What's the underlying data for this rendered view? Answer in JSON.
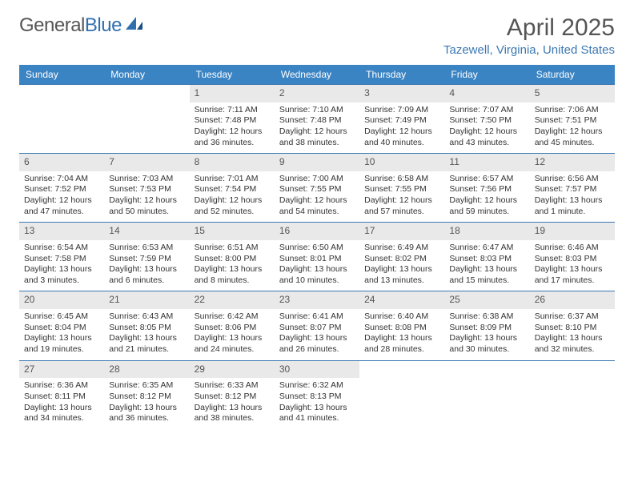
{
  "brand": {
    "part1": "General",
    "part2": "Blue"
  },
  "title": "April 2025",
  "location": "Tazewell, Virginia, United States",
  "day_headers": [
    "Sunday",
    "Monday",
    "Tuesday",
    "Wednesday",
    "Thursday",
    "Friday",
    "Saturday"
  ],
  "colors": {
    "header_bg": "#3b84c4",
    "header_text": "#ffffff",
    "accent": "#3b78b3",
    "daynum_bg": "#e9e9e9",
    "body_text": "#333333",
    "muted_text": "#555555",
    "page_bg": "#ffffff"
  },
  "weeks": [
    [
      null,
      null,
      {
        "n": "1",
        "sr": "Sunrise: 7:11 AM",
        "ss": "Sunset: 7:48 PM",
        "dl": "Daylight: 12 hours and 36 minutes."
      },
      {
        "n": "2",
        "sr": "Sunrise: 7:10 AM",
        "ss": "Sunset: 7:48 PM",
        "dl": "Daylight: 12 hours and 38 minutes."
      },
      {
        "n": "3",
        "sr": "Sunrise: 7:09 AM",
        "ss": "Sunset: 7:49 PM",
        "dl": "Daylight: 12 hours and 40 minutes."
      },
      {
        "n": "4",
        "sr": "Sunrise: 7:07 AM",
        "ss": "Sunset: 7:50 PM",
        "dl": "Daylight: 12 hours and 43 minutes."
      },
      {
        "n": "5",
        "sr": "Sunrise: 7:06 AM",
        "ss": "Sunset: 7:51 PM",
        "dl": "Daylight: 12 hours and 45 minutes."
      }
    ],
    [
      {
        "n": "6",
        "sr": "Sunrise: 7:04 AM",
        "ss": "Sunset: 7:52 PM",
        "dl": "Daylight: 12 hours and 47 minutes."
      },
      {
        "n": "7",
        "sr": "Sunrise: 7:03 AM",
        "ss": "Sunset: 7:53 PM",
        "dl": "Daylight: 12 hours and 50 minutes."
      },
      {
        "n": "8",
        "sr": "Sunrise: 7:01 AM",
        "ss": "Sunset: 7:54 PM",
        "dl": "Daylight: 12 hours and 52 minutes."
      },
      {
        "n": "9",
        "sr": "Sunrise: 7:00 AM",
        "ss": "Sunset: 7:55 PM",
        "dl": "Daylight: 12 hours and 54 minutes."
      },
      {
        "n": "10",
        "sr": "Sunrise: 6:58 AM",
        "ss": "Sunset: 7:55 PM",
        "dl": "Daylight: 12 hours and 57 minutes."
      },
      {
        "n": "11",
        "sr": "Sunrise: 6:57 AM",
        "ss": "Sunset: 7:56 PM",
        "dl": "Daylight: 12 hours and 59 minutes."
      },
      {
        "n": "12",
        "sr": "Sunrise: 6:56 AM",
        "ss": "Sunset: 7:57 PM",
        "dl": "Daylight: 13 hours and 1 minute."
      }
    ],
    [
      {
        "n": "13",
        "sr": "Sunrise: 6:54 AM",
        "ss": "Sunset: 7:58 PM",
        "dl": "Daylight: 13 hours and 3 minutes."
      },
      {
        "n": "14",
        "sr": "Sunrise: 6:53 AM",
        "ss": "Sunset: 7:59 PM",
        "dl": "Daylight: 13 hours and 6 minutes."
      },
      {
        "n": "15",
        "sr": "Sunrise: 6:51 AM",
        "ss": "Sunset: 8:00 PM",
        "dl": "Daylight: 13 hours and 8 minutes."
      },
      {
        "n": "16",
        "sr": "Sunrise: 6:50 AM",
        "ss": "Sunset: 8:01 PM",
        "dl": "Daylight: 13 hours and 10 minutes."
      },
      {
        "n": "17",
        "sr": "Sunrise: 6:49 AM",
        "ss": "Sunset: 8:02 PM",
        "dl": "Daylight: 13 hours and 13 minutes."
      },
      {
        "n": "18",
        "sr": "Sunrise: 6:47 AM",
        "ss": "Sunset: 8:03 PM",
        "dl": "Daylight: 13 hours and 15 minutes."
      },
      {
        "n": "19",
        "sr": "Sunrise: 6:46 AM",
        "ss": "Sunset: 8:03 PM",
        "dl": "Daylight: 13 hours and 17 minutes."
      }
    ],
    [
      {
        "n": "20",
        "sr": "Sunrise: 6:45 AM",
        "ss": "Sunset: 8:04 PM",
        "dl": "Daylight: 13 hours and 19 minutes."
      },
      {
        "n": "21",
        "sr": "Sunrise: 6:43 AM",
        "ss": "Sunset: 8:05 PM",
        "dl": "Daylight: 13 hours and 21 minutes."
      },
      {
        "n": "22",
        "sr": "Sunrise: 6:42 AM",
        "ss": "Sunset: 8:06 PM",
        "dl": "Daylight: 13 hours and 24 minutes."
      },
      {
        "n": "23",
        "sr": "Sunrise: 6:41 AM",
        "ss": "Sunset: 8:07 PM",
        "dl": "Daylight: 13 hours and 26 minutes."
      },
      {
        "n": "24",
        "sr": "Sunrise: 6:40 AM",
        "ss": "Sunset: 8:08 PM",
        "dl": "Daylight: 13 hours and 28 minutes."
      },
      {
        "n": "25",
        "sr": "Sunrise: 6:38 AM",
        "ss": "Sunset: 8:09 PM",
        "dl": "Daylight: 13 hours and 30 minutes."
      },
      {
        "n": "26",
        "sr": "Sunrise: 6:37 AM",
        "ss": "Sunset: 8:10 PM",
        "dl": "Daylight: 13 hours and 32 minutes."
      }
    ],
    [
      {
        "n": "27",
        "sr": "Sunrise: 6:36 AM",
        "ss": "Sunset: 8:11 PM",
        "dl": "Daylight: 13 hours and 34 minutes."
      },
      {
        "n": "28",
        "sr": "Sunrise: 6:35 AM",
        "ss": "Sunset: 8:12 PM",
        "dl": "Daylight: 13 hours and 36 minutes."
      },
      {
        "n": "29",
        "sr": "Sunrise: 6:33 AM",
        "ss": "Sunset: 8:12 PM",
        "dl": "Daylight: 13 hours and 38 minutes."
      },
      {
        "n": "30",
        "sr": "Sunrise: 6:32 AM",
        "ss": "Sunset: 8:13 PM",
        "dl": "Daylight: 13 hours and 41 minutes."
      },
      null,
      null,
      null
    ]
  ]
}
